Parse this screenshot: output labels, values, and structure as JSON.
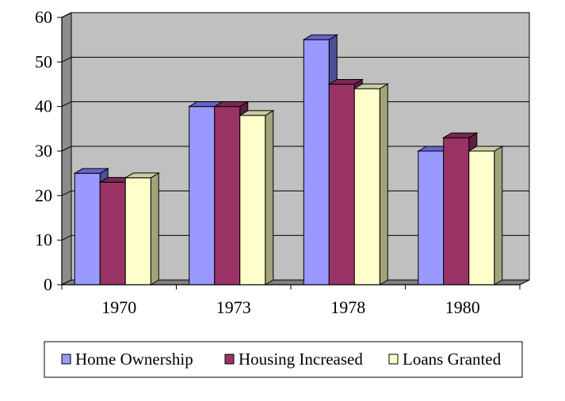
{
  "chart_data": {
    "type": "bar",
    "style": "3d-clustered-column",
    "categories": [
      "1970",
      "1973",
      "1978",
      "1980"
    ],
    "series": [
      {
        "name": "Home Ownership",
        "values": [
          25,
          40,
          55,
          30
        ],
        "color": "#9999ff",
        "top_color": "#6666cc",
        "side_color": "#4d4d99"
      },
      {
        "name": "Housing Increased",
        "values": [
          23,
          40,
          45,
          33
        ],
        "color": "#993366",
        "top_color": "#7a2952",
        "side_color": "#5c1f3d"
      },
      {
        "name": "Loans Granted",
        "values": [
          24,
          38,
          44,
          30
        ],
        "color": "#ffffcc",
        "top_color": "#cccca3",
        "side_color": "#a3a37a"
      }
    ],
    "y_ticks": [
      "0",
      "10",
      "20",
      "30",
      "40",
      "50",
      "60"
    ],
    "ylim": [
      0,
      60
    ],
    "grid": true,
    "wall_color": "#c0c0c0",
    "floor_color": "#808080",
    "legend_position": "bottom",
    "title": "",
    "xlabel": "",
    "ylabel": ""
  }
}
